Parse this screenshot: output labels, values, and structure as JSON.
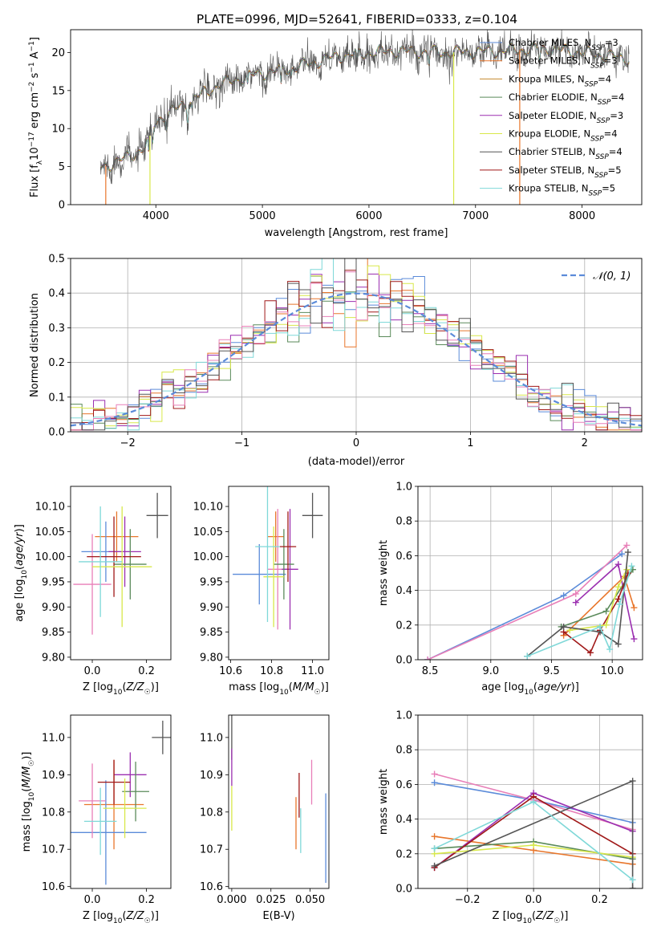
{
  "figure": {
    "title": "PLATE=0996, MJD=52641, FIBERID=0333, z=0.104"
  },
  "colors": {
    "chabrier_miles": "#5b8bd9",
    "salpeter_miles": "#e8762b",
    "kroupa_miles": "#c58a2e",
    "chabrier_elodie": "#5a8a5a",
    "salpeter_elodie": "#9b2fb0",
    "kroupa_elodie": "#d8e84a",
    "chabrier_stelib": "#555555",
    "salpeter_stelib": "#a01818",
    "kroupa_stelib": "#7fd8d8",
    "pink": "#e87fb8",
    "normal_curve": "#5b8bd9",
    "grid": "#b0b0b0"
  },
  "legend_spectrum": [
    {
      "label": "Chabrier MILES, N",
      "sub": "SSP",
      "tail": "=3",
      "color": "#5b8bd9"
    },
    {
      "label": "Salpeter MILES, N",
      "sub": "SSP",
      "tail": "=3",
      "color": "#e8762b"
    },
    {
      "label": "Kroupa MILES, N",
      "sub": "SSP",
      "tail": "=4",
      "color": "#c58a2e"
    },
    {
      "label": "Chabrier ELODIE, N",
      "sub": "SSP",
      "tail": "=4",
      "color": "#5a8a5a"
    },
    {
      "label": "Salpeter ELODIE, N",
      "sub": "SSP",
      "tail": "=3",
      "color": "#9b2fb0"
    },
    {
      "label": "Kroupa ELODIE, N",
      "sub": "SSP",
      "tail": "=4",
      "color": "#d8e84a"
    },
    {
      "label": "Chabrier STELIB, N",
      "sub": "SSP",
      "tail": "=4",
      "color": "#555555"
    },
    {
      "label": "Salpeter STELIB, N",
      "sub": "SSP",
      "tail": "=5",
      "color": "#a01818"
    },
    {
      "label": "Kroupa STELIB, N",
      "sub": "SSP",
      "tail": "=5",
      "color": "#7fd8d8"
    }
  ],
  "legend_hist": {
    "label": "𝒩(0, 1)"
  },
  "chart_data": [
    {
      "id": "spectrum",
      "type": "line",
      "xlabel": "wavelength [Angstrom, rest frame]",
      "ylabel": "Flux [f_λ10⁻¹⁷ erg cm⁻² s⁻¹ A⁻¹]",
      "xlim": [
        3200,
        8560
      ],
      "ylim": [
        0,
        23
      ],
      "xticks": [
        4000,
        5000,
        6000,
        7000,
        8000
      ],
      "yticks": [
        0,
        5,
        10,
        15,
        20
      ],
      "grid": false,
      "x_range": [
        3480,
        8440
      ],
      "continuum": [
        [
          3480,
          4.8
        ],
        [
          3700,
          6.0
        ],
        [
          3900,
          7.5
        ],
        [
          4000,
          11.0
        ],
        [
          4300,
          13.5
        ],
        [
          4600,
          15.8
        ],
        [
          4900,
          17.0
        ],
        [
          5300,
          18.0
        ],
        [
          5700,
          19.5
        ],
        [
          6200,
          20.2
        ],
        [
          6700,
          20.0
        ],
        [
          7200,
          20.2
        ],
        [
          7700,
          20.5
        ],
        [
          8100,
          19.8
        ],
        [
          8440,
          19.2
        ]
      ],
      "legend": "top-right"
    },
    {
      "id": "residual-histogram",
      "type": "step",
      "xlabel": "(data-model)/error",
      "ylabel": "Normed distribution",
      "xlim": [
        -2.5,
        2.5
      ],
      "ylim": [
        0,
        0.5
      ],
      "xticks": [
        -2,
        -1,
        0,
        1,
        2
      ],
      "yticks": [
        0.0,
        0.1,
        0.2,
        0.3,
        0.4,
        0.5
      ],
      "grid": true,
      "bins": 50,
      "reference_curve": "N(0,1)",
      "legend": "top-right"
    },
    {
      "id": "age-vs-Z",
      "type": "errorbar",
      "xlabel": "Z [log10(Z/Z☉)]",
      "ylabel": "age [log10(age/yr)]",
      "xlim": [
        -0.08,
        0.29
      ],
      "ylim": [
        9.795,
        10.14
      ],
      "xticks": [
        0.0,
        0.2
      ],
      "yticks": [
        9.8,
        9.85,
        9.9,
        9.95,
        10.0,
        10.05,
        10.1
      ],
      "points": [
        {
          "x": 0.09,
          "y": 10.04,
          "xerr": 0.08,
          "yerr": 0.05,
          "color": "#e8762b"
        },
        {
          "x": 0.05,
          "y": 10.01,
          "xerr": 0.09,
          "yerr": 0.06,
          "color": "#5b8bd9"
        },
        {
          "x": 0.0,
          "y": 9.945,
          "xerr": 0.07,
          "yerr": 0.1,
          "color": "#e87fb8"
        },
        {
          "x": 0.12,
          "y": 10.01,
          "xerr": 0.06,
          "yerr": 0.07,
          "color": "#9b2fb0"
        },
        {
          "x": 0.14,
          "y": 9.985,
          "xerr": 0.06,
          "yerr": 0.07,
          "color": "#5a8a5a"
        },
        {
          "x": 0.08,
          "y": 10.0,
          "xerr": 0.1,
          "yerr": 0.08,
          "color": "#a01818"
        },
        {
          "x": 0.11,
          "y": 9.98,
          "xerr": 0.11,
          "yerr": 0.12,
          "color": "#d8e84a"
        },
        {
          "x": 0.03,
          "y": 9.99,
          "xerr": 0.08,
          "yerr": 0.11,
          "color": "#7fd8d8"
        },
        {
          "x": 0.24,
          "y": 10.082,
          "xerr": 0.04,
          "yerr": 0.045,
          "color": "#555555"
        }
      ]
    },
    {
      "id": "age-vs-mass",
      "type": "errorbar",
      "xlabel": "mass [log10(M/M☉)]",
      "ylabel": "",
      "xlim": [
        10.59,
        11.08
      ],
      "ylim": [
        9.795,
        10.14
      ],
      "xticks": [
        10.6,
        10.8,
        11.0
      ],
      "yticks": [
        9.8,
        9.85,
        9.9,
        9.95,
        10.0,
        10.05,
        10.1
      ],
      "points": [
        {
          "x": 10.82,
          "y": 10.04,
          "xerr": 0.04,
          "yerr": 0.05,
          "color": "#e8762b"
        },
        {
          "x": 10.74,
          "y": 9.965,
          "xerr": 0.13,
          "yerr": 0.06,
          "color": "#5b8bd9"
        },
        {
          "x": 10.83,
          "y": 9.975,
          "xerr": 0.05,
          "yerr": 0.12,
          "color": "#e87fb8"
        },
        {
          "x": 10.89,
          "y": 9.975,
          "xerr": 0.04,
          "yerr": 0.12,
          "color": "#9b2fb0"
        },
        {
          "x": 10.86,
          "y": 9.985,
          "xerr": 0.05,
          "yerr": 0.07,
          "color": "#5a8a5a"
        },
        {
          "x": 10.88,
          "y": 10.02,
          "xerr": 0.04,
          "yerr": 0.07,
          "color": "#a01818"
        },
        {
          "x": 10.81,
          "y": 9.96,
          "xerr": 0.05,
          "yerr": 0.1,
          "color": "#d8e84a"
        },
        {
          "x": 10.78,
          "y": 10.02,
          "xerr": 0.06,
          "yerr": 0.15,
          "color": "#7fd8d8"
        },
        {
          "x": 11.0,
          "y": 10.082,
          "xerr": 0.05,
          "yerr": 0.045,
          "color": "#555555"
        }
      ]
    },
    {
      "id": "mass-weight-vs-age",
      "type": "line",
      "xlabel": "age [log10(age/yr)]",
      "ylabel": "mass weight",
      "xlim": [
        8.4,
        10.25
      ],
      "ylim": [
        0.0,
        1.0
      ],
      "xticks": [
        8.5,
        9.0,
        9.5,
        10.0
      ],
      "yticks": [
        0.0,
        0.2,
        0.4,
        0.6,
        0.8,
        1.0
      ],
      "grid": true,
      "series": [
        {
          "color": "#5b8bd9",
          "points": [
            [
              8.48,
              0.0
            ],
            [
              9.6,
              0.37
            ],
            [
              10.08,
              0.61
            ]
          ]
        },
        {
          "color": "#e87fb8",
          "points": [
            [
              8.48,
              0.0
            ],
            [
              9.7,
              0.38
            ],
            [
              10.12,
              0.66
            ]
          ]
        },
        {
          "color": "#e8762b",
          "points": [
            [
              9.6,
              0.14
            ],
            [
              10.1,
              0.48
            ],
            [
              10.18,
              0.3
            ]
          ]
        },
        {
          "color": "#9b2fb0",
          "points": [
            [
              9.7,
              0.33
            ],
            [
              10.05,
              0.55
            ],
            [
              10.18,
              0.12
            ]
          ]
        },
        {
          "color": "#5a8a5a",
          "points": [
            [
              9.58,
              0.19
            ],
            [
              9.95,
              0.28
            ],
            [
              10.17,
              0.52
            ]
          ]
        },
        {
          "color": "#a01818",
          "points": [
            [
              9.6,
              0.16
            ],
            [
              9.82,
              0.04
            ],
            [
              9.9,
              0.17
            ],
            [
              10.05,
              0.35
            ],
            [
              10.13,
              0.5
            ]
          ]
        },
        {
          "color": "#d8e84a",
          "points": [
            [
              9.65,
              0.17
            ],
            [
              9.95,
              0.2
            ],
            [
              10.05,
              0.42
            ],
            [
              10.12,
              0.52
            ]
          ]
        },
        {
          "color": "#555555",
          "points": [
            [
              9.3,
              0.02
            ],
            [
              9.6,
              0.19
            ],
            [
              9.9,
              0.16
            ],
            [
              10.05,
              0.09
            ],
            [
              10.13,
              0.62
            ]
          ]
        },
        {
          "color": "#7fd8d8",
          "points": [
            [
              9.3,
              0.02
            ],
            [
              9.9,
              0.19
            ],
            [
              9.98,
              0.06
            ],
            [
              10.06,
              0.32
            ],
            [
              10.16,
              0.54
            ]
          ]
        }
      ]
    },
    {
      "id": "mass-vs-Z",
      "type": "errorbar",
      "xlabel": "Z [log10(Z/Z☉)]",
      "ylabel": "mass [log10(M/M☉)]",
      "xlim": [
        -0.08,
        0.29
      ],
      "ylim": [
        10.595,
        11.06
      ],
      "xticks": [
        0.0,
        0.2
      ],
      "yticks": [
        10.6,
        10.7,
        10.8,
        10.9,
        11.0
      ],
      "points": [
        {
          "x": 0.08,
          "y": 10.82,
          "xerr": 0.11,
          "yerr": 0.12,
          "color": "#e8762b"
        },
        {
          "x": 0.05,
          "y": 10.745,
          "xerr": 0.15,
          "yerr": 0.14,
          "color": "#5b8bd9"
        },
        {
          "x": 0.0,
          "y": 10.83,
          "xerr": 0.05,
          "yerr": 0.1,
          "color": "#e87fb8"
        },
        {
          "x": 0.14,
          "y": 10.9,
          "xerr": 0.06,
          "yerr": 0.06,
          "color": "#9b2fb0"
        },
        {
          "x": 0.16,
          "y": 10.855,
          "xerr": 0.05,
          "yerr": 0.08,
          "color": "#5a8a5a"
        },
        {
          "x": 0.08,
          "y": 10.88,
          "xerr": 0.06,
          "yerr": 0.06,
          "color": "#a01818"
        },
        {
          "x": 0.12,
          "y": 10.81,
          "xerr": 0.08,
          "yerr": 0.08,
          "color": "#d8e84a"
        },
        {
          "x": 0.03,
          "y": 10.775,
          "xerr": 0.06,
          "yerr": 0.09,
          "color": "#7fd8d8"
        },
        {
          "x": 0.26,
          "y": 11.0,
          "xerr": 0.04,
          "yerr": 0.045,
          "color": "#555555"
        }
      ]
    },
    {
      "id": "mass-vs-EBV",
      "type": "errorbar",
      "xlabel": "E(B-V)",
      "ylabel": "",
      "xlim": [
        -0.002,
        0.062
      ],
      "ylim": [
        10.595,
        11.06
      ],
      "xticks": [
        0.0,
        0.025,
        0.05
      ],
      "yticks": [
        10.6,
        10.7,
        10.8,
        10.9,
        11.0
      ],
      "points": [
        {
          "x": 0.0,
          "y": 11.0,
          "xerr": 0,
          "yerr": 0.06,
          "color": "#555555"
        },
        {
          "x": 0.0,
          "y": 10.92,
          "xerr": 0,
          "yerr": 0.05,
          "color": "#9b2fb0"
        },
        {
          "x": 0.0,
          "y": 10.81,
          "xerr": 0,
          "yerr": 0.06,
          "color": "#d8e84a"
        },
        {
          "x": 0.041,
          "y": 10.77,
          "xerr": 0,
          "yerr": 0.07,
          "color": "#e8762b"
        },
        {
          "x": 0.043,
          "y": 10.845,
          "xerr": 0,
          "yerr": 0.06,
          "color": "#a01818"
        },
        {
          "x": 0.044,
          "y": 10.75,
          "xerr": 0,
          "yerr": 0.06,
          "color": "#7fd8d8"
        },
        {
          "x": 0.051,
          "y": 10.88,
          "xerr": 0,
          "yerr": 0.06,
          "color": "#e87fb8"
        },
        {
          "x": 0.06,
          "y": 10.73,
          "xerr": 0,
          "yerr": 0.12,
          "color": "#5b8bd9"
        }
      ]
    },
    {
      "id": "mass-weight-vs-Z",
      "type": "line",
      "xlabel": "Z [log10(Z/Z☉)]",
      "ylabel": "mass weight",
      "xlim": [
        -0.35,
        0.33
      ],
      "ylim": [
        0.0,
        1.0
      ],
      "xticks": [
        -0.2,
        0.0,
        0.2
      ],
      "yticks": [
        0.0,
        0.2,
        0.4,
        0.6,
        0.8,
        1.0
      ],
      "grid": true,
      "series": [
        {
          "color": "#5b8bd9",
          "points": [
            [
              -0.3,
              0.61
            ],
            [
              0.0,
              0.51
            ],
            [
              0.3,
              0.38
            ]
          ]
        },
        {
          "color": "#e87fb8",
          "points": [
            [
              -0.3,
              0.66
            ],
            [
              0.0,
              0.51
            ],
            [
              0.3,
              0.34
            ]
          ]
        },
        {
          "color": "#e8762b",
          "points": [
            [
              -0.3,
              0.3
            ],
            [
              0.0,
              0.22
            ],
            [
              0.3,
              0.14
            ]
          ]
        },
        {
          "color": "#9b2fb0",
          "points": [
            [
              -0.3,
              0.12
            ],
            [
              0.0,
              0.55
            ],
            [
              0.3,
              0.33
            ]
          ]
        },
        {
          "color": "#5a8a5a",
          "points": [
            [
              -0.3,
              0.23
            ],
            [
              0.0,
              0.27
            ],
            [
              0.3,
              0.17
            ]
          ]
        },
        {
          "color": "#a01818",
          "points": [
            [
              -0.3,
              0.12
            ],
            [
              0.0,
              0.53
            ],
            [
              0.3,
              0.2
            ]
          ]
        },
        {
          "color": "#d8e84a",
          "points": [
            [
              -0.3,
              0.2
            ],
            [
              0.0,
              0.25
            ],
            [
              0.3,
              0.18
            ]
          ]
        },
        {
          "color": "#555555",
          "points": [
            [
              -0.3,
              0.13
            ],
            [
              0.3,
              0.62
            ],
            [
              0.3,
              0.0
            ]
          ]
        },
        {
          "color": "#7fd8d8",
          "points": [
            [
              -0.3,
              0.23
            ],
            [
              0.0,
              0.5
            ],
            [
              0.3,
              0.05
            ]
          ]
        }
      ]
    }
  ]
}
